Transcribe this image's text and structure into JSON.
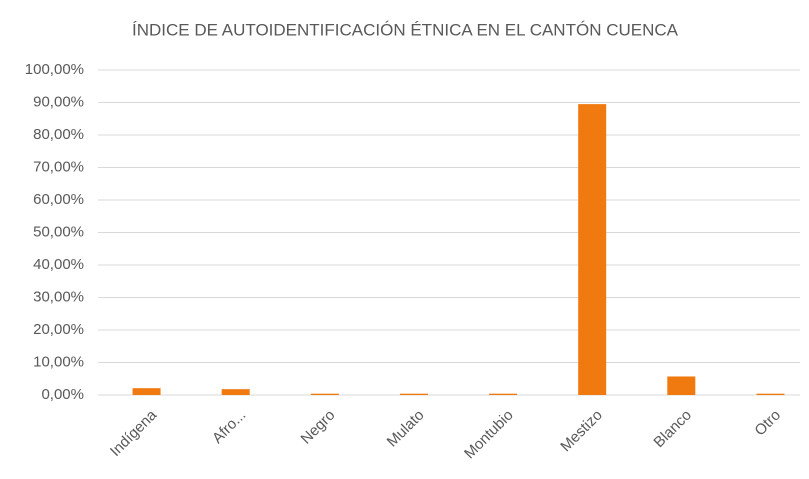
{
  "chart_data": {
    "type": "bar",
    "title": "ÍNDICE DE AUTOIDENTIFICACIÓN ÉTNICA EN EL CANTÓN CUENCA",
    "categories": [
      "Indígena",
      "Afro...",
      "Negro",
      "Mulato",
      "Montubio",
      "Mestizo",
      "Blanco",
      "Otro"
    ],
    "values": [
      2.1,
      1.8,
      0.4,
      0.4,
      0.4,
      89.5,
      5.7,
      0.4
    ],
    "color": "#f07a10",
    "ylim": [
      0,
      100
    ],
    "yticks": [
      {
        "value": 0,
        "label": "0,00%"
      },
      {
        "value": 10,
        "label": "10,00%"
      },
      {
        "value": 20,
        "label": "20,00%"
      },
      {
        "value": 30,
        "label": "30,00%"
      },
      {
        "value": 40,
        "label": "40,00%"
      },
      {
        "value": 50,
        "label": "50,00%"
      },
      {
        "value": 60,
        "label": "60,00%"
      },
      {
        "value": 70,
        "label": "70,00%"
      },
      {
        "value": 80,
        "label": "80,00%"
      },
      {
        "value": 90,
        "label": "90,00%"
      },
      {
        "value": 100,
        "label": "100,00%"
      }
    ],
    "grid": true
  }
}
